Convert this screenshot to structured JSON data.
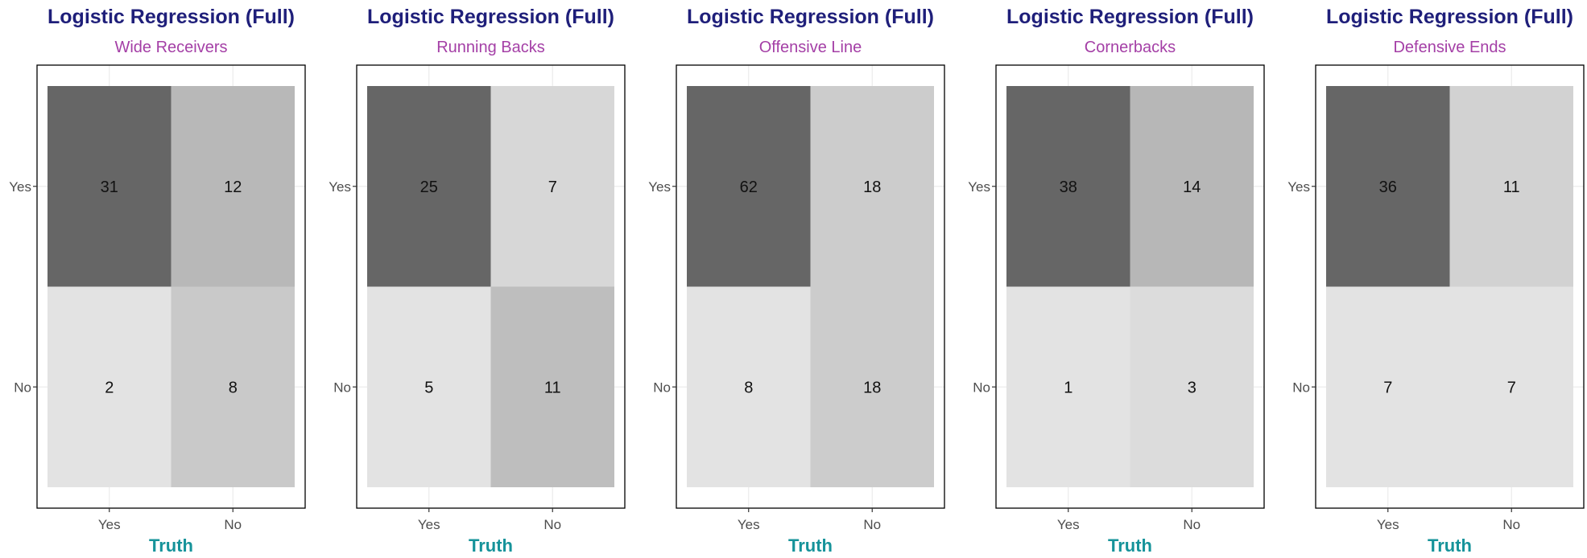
{
  "colors": {
    "title": "#1F1F7A",
    "subtitle": "#A43FA6",
    "xlabel": "#16939A",
    "panel_border": "#000000",
    "grid": "#EBEBEB",
    "tick_text": "#4D4D4D",
    "cell_text": "#111111",
    "fill_dark": "#666666",
    "fill_light": "#E3E3E3"
  },
  "chart_data": [
    {
      "type": "heatmap",
      "title": "Logistic Regression (Full)",
      "subtitle": "Wide Receivers",
      "xlabel": "Truth",
      "ylabel": "",
      "x_categories": [
        "Yes",
        "No"
      ],
      "y_categories": [
        "Yes",
        "No"
      ],
      "cells": [
        {
          "x": "Yes",
          "y": "Yes",
          "value": 31
        },
        {
          "x": "No",
          "y": "Yes",
          "value": 12
        },
        {
          "x": "Yes",
          "y": "No",
          "value": 2
        },
        {
          "x": "No",
          "y": "No",
          "value": 8
        }
      ]
    },
    {
      "type": "heatmap",
      "title": "Logistic Regression (Full)",
      "subtitle": "Running Backs",
      "xlabel": "Truth",
      "ylabel": "",
      "x_categories": [
        "Yes",
        "No"
      ],
      "y_categories": [
        "Yes",
        "No"
      ],
      "cells": [
        {
          "x": "Yes",
          "y": "Yes",
          "value": 25
        },
        {
          "x": "No",
          "y": "Yes",
          "value": 7
        },
        {
          "x": "Yes",
          "y": "No",
          "value": 5
        },
        {
          "x": "No",
          "y": "No",
          "value": 11
        }
      ]
    },
    {
      "type": "heatmap",
      "title": "Logistic Regression (Full)",
      "subtitle": "Offensive Line",
      "xlabel": "Truth",
      "ylabel": "",
      "x_categories": [
        "Yes",
        "No"
      ],
      "y_categories": [
        "Yes",
        "No"
      ],
      "cells": [
        {
          "x": "Yes",
          "y": "Yes",
          "value": 62
        },
        {
          "x": "No",
          "y": "Yes",
          "value": 18
        },
        {
          "x": "Yes",
          "y": "No",
          "value": 8
        },
        {
          "x": "No",
          "y": "No",
          "value": 18
        }
      ]
    },
    {
      "type": "heatmap",
      "title": "Logistic Regression (Full)",
      "subtitle": "Cornerbacks",
      "xlabel": "Truth",
      "ylabel": "",
      "x_categories": [
        "Yes",
        "No"
      ],
      "y_categories": [
        "Yes",
        "No"
      ],
      "cells": [
        {
          "x": "Yes",
          "y": "Yes",
          "value": 38
        },
        {
          "x": "No",
          "y": "Yes",
          "value": 14
        },
        {
          "x": "Yes",
          "y": "No",
          "value": 1
        },
        {
          "x": "No",
          "y": "No",
          "value": 3
        }
      ]
    },
    {
      "type": "heatmap",
      "title": "Logistic Regression (Full)",
      "subtitle": "Defensive Ends",
      "xlabel": "Truth",
      "ylabel": "",
      "x_categories": [
        "Yes",
        "No"
      ],
      "y_categories": [
        "Yes",
        "No"
      ],
      "cells": [
        {
          "x": "Yes",
          "y": "Yes",
          "value": 36
        },
        {
          "x": "No",
          "y": "Yes",
          "value": 11
        },
        {
          "x": "Yes",
          "y": "No",
          "value": 7
        },
        {
          "x": "No",
          "y": "No",
          "value": 7
        }
      ]
    }
  ]
}
